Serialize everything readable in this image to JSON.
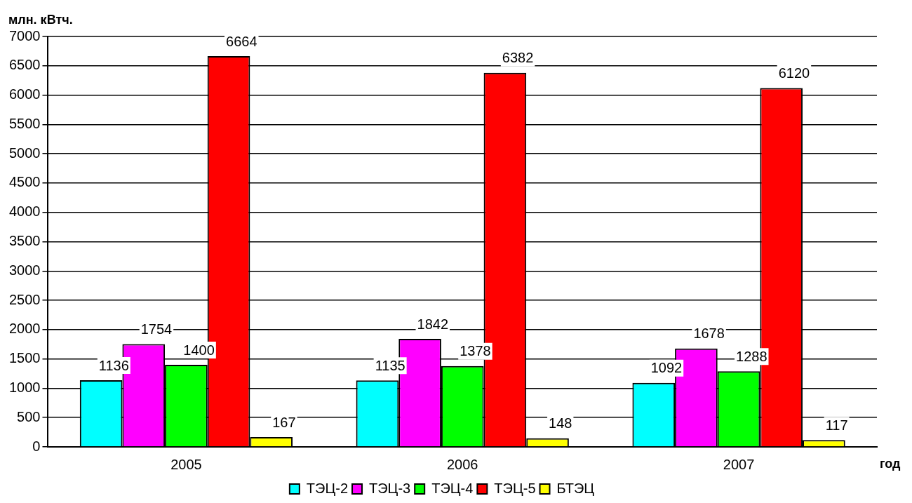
{
  "chart_data": {
    "type": "bar",
    "ylabel": "млн. кВтч.",
    "xlabel": "год",
    "categories": [
      "2005",
      "2006",
      "2007"
    ],
    "series": [
      {
        "name": "ТЭЦ-2",
        "color": "#00ffff",
        "values": [
          1136,
          1135,
          1092
        ]
      },
      {
        "name": "ТЭЦ-3",
        "color": "#ff00ff",
        "values": [
          1754,
          1842,
          1678
        ]
      },
      {
        "name": "ТЭЦ-4",
        "color": "#00ff00",
        "values": [
          1400,
          1378,
          1288
        ]
      },
      {
        "name": "ТЭЦ-5",
        "color": "#ff0000",
        "values": [
          6664,
          6382,
          6120
        ]
      },
      {
        "name": "БТЭЦ",
        "color": "#ffff00",
        "values": [
          167,
          148,
          117
        ]
      }
    ],
    "ylim": [
      0,
      7000
    ],
    "yticks": [
      0,
      500,
      1000,
      1500,
      2000,
      2500,
      3000,
      3500,
      4000,
      4500,
      5000,
      5500,
      6000,
      6500,
      7000
    ],
    "grid": "y",
    "legend": "bottom",
    "data_labels": true
  }
}
